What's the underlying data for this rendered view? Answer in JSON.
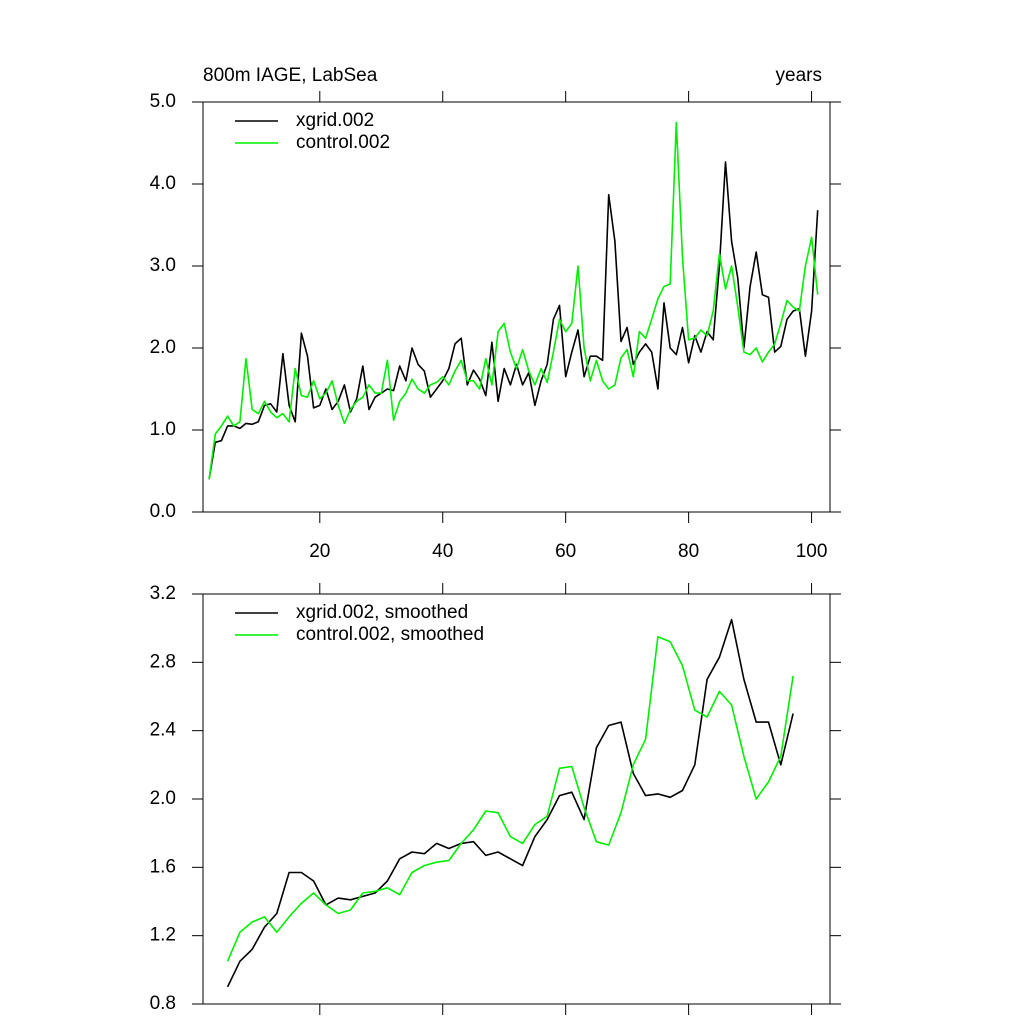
{
  "chart_data": [
    {
      "type": "line",
      "title": "800m IAGE, LabSea",
      "right_label": "years",
      "x": [
        2,
        3,
        4,
        5,
        6,
        7,
        8,
        9,
        10,
        11,
        12,
        13,
        14,
        15,
        16,
        17,
        18,
        19,
        20,
        21,
        22,
        23,
        24,
        25,
        26,
        27,
        28,
        29,
        30,
        31,
        32,
        33,
        34,
        35,
        36,
        37,
        38,
        39,
        40,
        41,
        42,
        43,
        44,
        45,
        46,
        47,
        48,
        49,
        50,
        51,
        52,
        53,
        54,
        55,
        56,
        57,
        58,
        59,
        60,
        61,
        62,
        63,
        64,
        65,
        66,
        67,
        68,
        69,
        70,
        71,
        72,
        73,
        74,
        75,
        76,
        77,
        78,
        79,
        80,
        81,
        82,
        83,
        84,
        85,
        86,
        87,
        88,
        89,
        90,
        91,
        92,
        93,
        94,
        95,
        96,
        97,
        98,
        99,
        100,
        101
      ],
      "series": [
        {
          "name": "xgrid.002",
          "color": "#000000",
          "values": [
            0.4,
            0.85,
            0.87,
            1.05,
            1.05,
            1.02,
            1.08,
            1.07,
            1.1,
            1.3,
            1.32,
            1.22,
            1.93,
            1.3,
            1.1,
            2.18,
            1.9,
            1.27,
            1.3,
            1.5,
            1.25,
            1.35,
            1.55,
            1.22,
            1.38,
            1.78,
            1.25,
            1.4,
            1.45,
            1.5,
            1.48,
            1.78,
            1.6,
            2.0,
            1.8,
            1.72,
            1.4,
            1.5,
            1.6,
            1.75,
            2.05,
            2.12,
            1.55,
            1.73,
            1.62,
            1.42,
            2.07,
            1.35,
            1.75,
            1.55,
            1.8,
            1.55,
            1.7,
            1.3,
            1.6,
            1.8,
            2.35,
            2.52,
            1.65,
            1.95,
            2.22,
            1.65,
            1.9,
            1.9,
            1.85,
            3.87,
            3.3,
            2.08,
            2.25,
            1.8,
            1.95,
            2.05,
            1.95,
            1.5,
            2.55,
            2.0,
            1.92,
            2.25,
            1.82,
            2.15,
            1.95,
            2.2,
            2.1,
            3.0,
            4.27,
            3.3,
            2.85,
            2.0,
            2.75,
            3.17,
            2.65,
            2.62,
            1.95,
            2.02,
            2.35,
            2.45,
            2.48,
            1.9,
            2.45,
            3.68
          ]
        },
        {
          "name": "control.002",
          "color": "#00ee00",
          "values": [
            0.4,
            0.95,
            1.05,
            1.17,
            1.05,
            1.1,
            1.87,
            1.25,
            1.2,
            1.35,
            1.22,
            1.15,
            1.2,
            1.1,
            1.75,
            1.42,
            1.4,
            1.6,
            1.38,
            1.45,
            1.6,
            1.3,
            1.08,
            1.25,
            1.35,
            1.4,
            1.55,
            1.45,
            1.45,
            1.85,
            1.12,
            1.35,
            1.45,
            1.62,
            1.5,
            1.45,
            1.55,
            1.58,
            1.65,
            1.55,
            1.72,
            1.85,
            1.6,
            1.6,
            1.5,
            1.87,
            1.55,
            2.2,
            2.3,
            1.95,
            1.75,
            1.98,
            1.72,
            1.55,
            1.75,
            1.58,
            1.95,
            2.35,
            2.2,
            2.3,
            3.0,
            2.0,
            1.6,
            1.85,
            1.6,
            1.5,
            1.55,
            1.88,
            1.98,
            1.65,
            2.2,
            2.12,
            2.35,
            2.6,
            2.75,
            2.78,
            4.75,
            3.1,
            2.1,
            2.12,
            2.22,
            2.15,
            2.45,
            3.15,
            2.72,
            3.0,
            2.5,
            1.95,
            1.92,
            2.0,
            1.83,
            1.95,
            2.05,
            2.3,
            2.58,
            2.5,
            2.45,
            3.0,
            3.35,
            2.65
          ]
        }
      ],
      "xlim": [
        1,
        103
      ],
      "xticks": [
        20,
        40,
        60,
        80,
        100
      ],
      "ylim": [
        0,
        5
      ],
      "yticks": [
        {
          "value": 0,
          "label": "0.0"
        },
        {
          "value": 1,
          "label": "1.0"
        },
        {
          "value": 2,
          "label": "2.0"
        },
        {
          "value": 3,
          "label": "3.0"
        },
        {
          "value": 4,
          "label": "4.0"
        },
        {
          "value": 5,
          "label": "5.0"
        }
      ],
      "legend": "upper left"
    },
    {
      "type": "line",
      "x": [
        5,
        7,
        9,
        11,
        13,
        15,
        17,
        19,
        21,
        23,
        25,
        27,
        29,
        31,
        33,
        35,
        37,
        39,
        41,
        43,
        45,
        47,
        49,
        51,
        53,
        55,
        57,
        59,
        61,
        63,
        65,
        67,
        69,
        71,
        73,
        75,
        77,
        79,
        81,
        83,
        85,
        87,
        89,
        91,
        93,
        95,
        97
      ],
      "series": [
        {
          "name": "xgrid.002, smoothed",
          "color": "#000000",
          "values": [
            0.9,
            1.05,
            1.12,
            1.25,
            1.33,
            1.57,
            1.57,
            1.52,
            1.38,
            1.42,
            1.41,
            1.43,
            1.45,
            1.52,
            1.65,
            1.69,
            1.68,
            1.74,
            1.71,
            1.74,
            1.75,
            1.67,
            1.69,
            1.65,
            1.61,
            1.78,
            1.88,
            2.02,
            2.04,
            1.88,
            2.3,
            2.43,
            2.45,
            2.15,
            2.02,
            2.03,
            2.01,
            2.05,
            2.2,
            2.7,
            2.83,
            3.05,
            2.7,
            2.45,
            2.45,
            2.2,
            2.5
          ]
        },
        {
          "name": "control.002, smoothed",
          "color": "#00ee00",
          "values": [
            1.05,
            1.22,
            1.28,
            1.31,
            1.22,
            1.31,
            1.39,
            1.45,
            1.38,
            1.33,
            1.35,
            1.45,
            1.46,
            1.48,
            1.44,
            1.57,
            1.61,
            1.63,
            1.64,
            1.74,
            1.82,
            1.93,
            1.92,
            1.78,
            1.74,
            1.85,
            1.9,
            2.18,
            2.19,
            1.95,
            1.75,
            1.73,
            1.92,
            2.2,
            2.35,
            2.95,
            2.92,
            2.78,
            2.52,
            2.48,
            2.63,
            2.55,
            2.25,
            2.0,
            2.1,
            2.25,
            2.72
          ]
        }
      ],
      "xlim": [
        1,
        103
      ],
      "ylim": [
        0.8,
        3.2
      ],
      "yticks": [
        0.8,
        1.2,
        1.6,
        {
          "value": 2,
          "label": "2.0"
        },
        2.4,
        2.8,
        3.2
      ],
      "legend": "upper left"
    }
  ]
}
